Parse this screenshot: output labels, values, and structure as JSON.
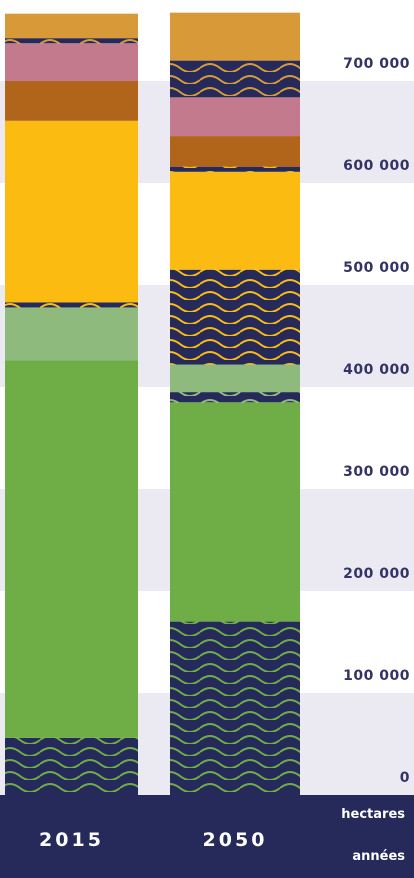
{
  "chart_data": {
    "type": "stacked-bar",
    "categories": [
      "2015",
      "2050"
    ],
    "y_unit": "hectares",
    "x_unit": "années",
    "ylim": [
      0,
      770000
    ],
    "yticks": [
      0,
      {
        "value": 100000,
        "label": "100 000"
      },
      {
        "value": 200000,
        "label": "200 000"
      },
      {
        "value": 300000,
        "label": "300 000"
      },
      {
        "value": 400000,
        "label": "400 000"
      },
      {
        "value": 500000,
        "label": "500 000"
      },
      {
        "value": 600000,
        "label": "600 000"
      },
      {
        "value": 700000,
        "label": "700 000"
      }
    ],
    "band_colors": [
      "#ebeaf2",
      "#ffffff"
    ],
    "series": [
      {
        "color": "#262a5a",
        "wave": "#6fae46",
        "values": [
          56000,
          170000
        ]
      },
      {
        "color": "#6fae46",
        "values": [
          370000,
          215000
        ]
      },
      {
        "color": "#262a5a",
        "wave": "#8fba7e",
        "values": [
          0,
          10000
        ]
      },
      {
        "color": "#8fba7e",
        "values": [
          52000,
          27000
        ]
      },
      {
        "color": "#262a5a",
        "wave": "#fbbb10",
        "values": [
          5000,
          93000
        ]
      },
      {
        "color": "#fbbb10",
        "values": [
          178000,
          96000
        ]
      },
      {
        "color": "#262a5a",
        "wave": "#fbbb10",
        "values": [
          0,
          5000
        ]
      },
      {
        "color": "#b0651a",
        "values": [
          39000,
          30000
        ]
      },
      {
        "color": "#c27a8c",
        "values": [
          37000,
          38000
        ]
      },
      {
        "color": "#262a5a",
        "wave": "#d89a38",
        "values": [
          5000,
          36000
        ]
      },
      {
        "color": "#d89a38",
        "values": [
          24000,
          47000
        ]
      }
    ]
  }
}
